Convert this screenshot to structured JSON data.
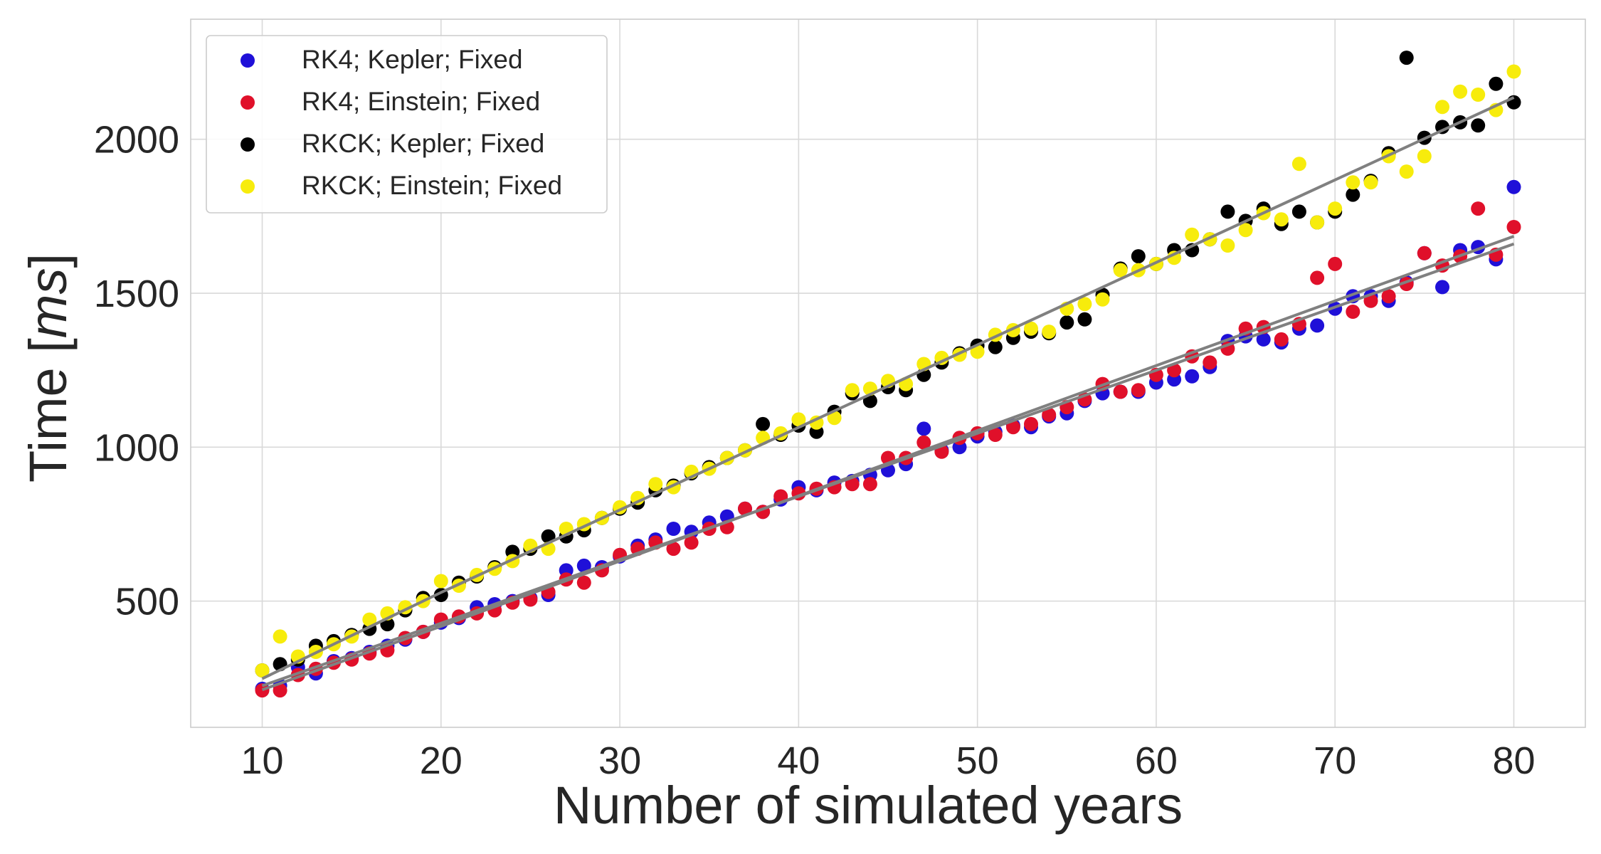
{
  "chart_data": {
    "type": "scatter",
    "title": "",
    "xlabel": "Number of simulated years",
    "ylabel": "Time [ms]",
    "ylabel_parts": {
      "prefix": "Time [",
      "unit": "ms",
      "suffix": "]"
    },
    "xlim": [
      6,
      84
    ],
    "ylim": [
      90,
      2390
    ],
    "xticks": [
      10,
      20,
      30,
      40,
      50,
      60,
      70,
      80
    ],
    "yticks": [
      500,
      1000,
      1500,
      2000
    ],
    "grid": true,
    "legend_position": "top-left",
    "x": [
      10,
      11,
      12,
      13,
      14,
      15,
      16,
      17,
      18,
      19,
      20,
      21,
      22,
      23,
      24,
      25,
      26,
      27,
      28,
      29,
      30,
      31,
      32,
      33,
      34,
      35,
      36,
      37,
      38,
      39,
      40,
      41,
      42,
      43,
      44,
      45,
      46,
      47,
      48,
      49,
      50,
      51,
      52,
      53,
      54,
      55,
      56,
      57,
      58,
      59,
      60,
      61,
      62,
      63,
      64,
      65,
      66,
      67,
      68,
      69,
      70,
      71,
      72,
      73,
      74,
      75,
      76,
      77,
      78,
      79,
      80
    ],
    "series": [
      {
        "name": "RK4; Kepler; Fixed",
        "color": "#1f10d8",
        "values": [
          215,
          225,
          285,
          265,
          305,
          315,
          335,
          355,
          375,
          400,
          430,
          445,
          480,
          490,
          500,
          510,
          520,
          600,
          615,
          610,
          645,
          680,
          700,
          735,
          725,
          755,
          775,
          800,
          790,
          830,
          870,
          860,
          885,
          890,
          910,
          925,
          945,
          1060,
          990,
          1000,
          1035,
          1050,
          1070,
          1065,
          1100,
          1110,
          1150,
          1175,
          1180,
          1180,
          1210,
          1220,
          1230,
          1260,
          1345,
          1360,
          1350,
          1340,
          1385,
          1395,
          1450,
          1490,
          1490,
          1475,
          1535,
          1630,
          1520,
          1640,
          1650,
          1610,
          1845
        ]
      },
      {
        "name": "RK4; Einstein; Fixed",
        "color": "#e0102a",
        "values": [
          210,
          210,
          260,
          280,
          300,
          310,
          330,
          340,
          380,
          400,
          440,
          450,
          460,
          470,
          495,
          505,
          530,
          570,
          560,
          600,
          650,
          670,
          690,
          670,
          690,
          735,
          740,
          800,
          790,
          840,
          850,
          865,
          870,
          880,
          880,
          965,
          965,
          1015,
          985,
          1030,
          1045,
          1040,
          1065,
          1075,
          1105,
          1130,
          1155,
          1205,
          1180,
          1185,
          1235,
          1250,
          1295,
          1275,
          1320,
          1385,
          1390,
          1350,
          1400,
          1550,
          1595,
          1440,
          1475,
          1490,
          1530,
          1630,
          1590,
          1620,
          1775,
          1625,
          1715
        ]
      },
      {
        "name": "RKCK; Kepler; Fixed",
        "color": "#000000",
        "values": [
          275,
          295,
          310,
          355,
          370,
          390,
          410,
          425,
          470,
          510,
          520,
          560,
          580,
          610,
          660,
          670,
          710,
          710,
          730,
          770,
          800,
          820,
          860,
          875,
          915,
          935,
          965,
          990,
          1075,
          1040,
          1070,
          1050,
          1115,
          1175,
          1150,
          1195,
          1185,
          1235,
          1275,
          1305,
          1330,
          1325,
          1355,
          1375,
          1370,
          1405,
          1415,
          1495,
          1580,
          1620,
          1595,
          1640,
          1640,
          1675,
          1765,
          1735,
          1775,
          1725,
          1765,
          1730,
          1765,
          1820,
          1865,
          1955,
          2265,
          2005,
          2040,
          2055,
          2045,
          2180,
          2120
        ]
      },
      {
        "name": "RKCK; Einstein; Fixed",
        "color": "#f7ec0c",
        "values": [
          275,
          385,
          320,
          335,
          360,
          385,
          440,
          460,
          480,
          500,
          565,
          550,
          585,
          605,
          630,
          680,
          670,
          735,
          750,
          770,
          805,
          835,
          880,
          870,
          920,
          930,
          965,
          990,
          1030,
          1045,
          1090,
          1080,
          1095,
          1185,
          1190,
          1215,
          1205,
          1270,
          1290,
          1300,
          1310,
          1365,
          1380,
          1385,
          1375,
          1450,
          1465,
          1480,
          1575,
          1575,
          1595,
          1615,
          1690,
          1675,
          1655,
          1705,
          1760,
          1740,
          1920,
          1730,
          1775,
          1860,
          1860,
          1945,
          1895,
          1945,
          2105,
          2155,
          2145,
          2095,
          2220
        ]
      }
    ],
    "fit_lines": [
      {
        "color": "#808080",
        "x": [
          10,
          20,
          30,
          40,
          50,
          60,
          70,
          80
        ],
        "y": [
          248,
          528,
          796,
          1064,
          1332,
          1600,
          1868,
          2136
        ]
      },
      {
        "color": "#808080",
        "x": [
          10,
          20,
          30,
          40,
          50,
          60,
          70,
          80
        ],
        "y": [
          212,
          418,
          630,
          842,
          1054,
          1265,
          1475,
          1685
        ]
      },
      {
        "color": "#808080",
        "x": [
          10,
          20,
          30,
          40,
          50,
          60,
          70,
          80
        ],
        "y": [
          225,
          428,
          635,
          840,
          1045,
          1250,
          1455,
          1660
        ]
      }
    ]
  }
}
